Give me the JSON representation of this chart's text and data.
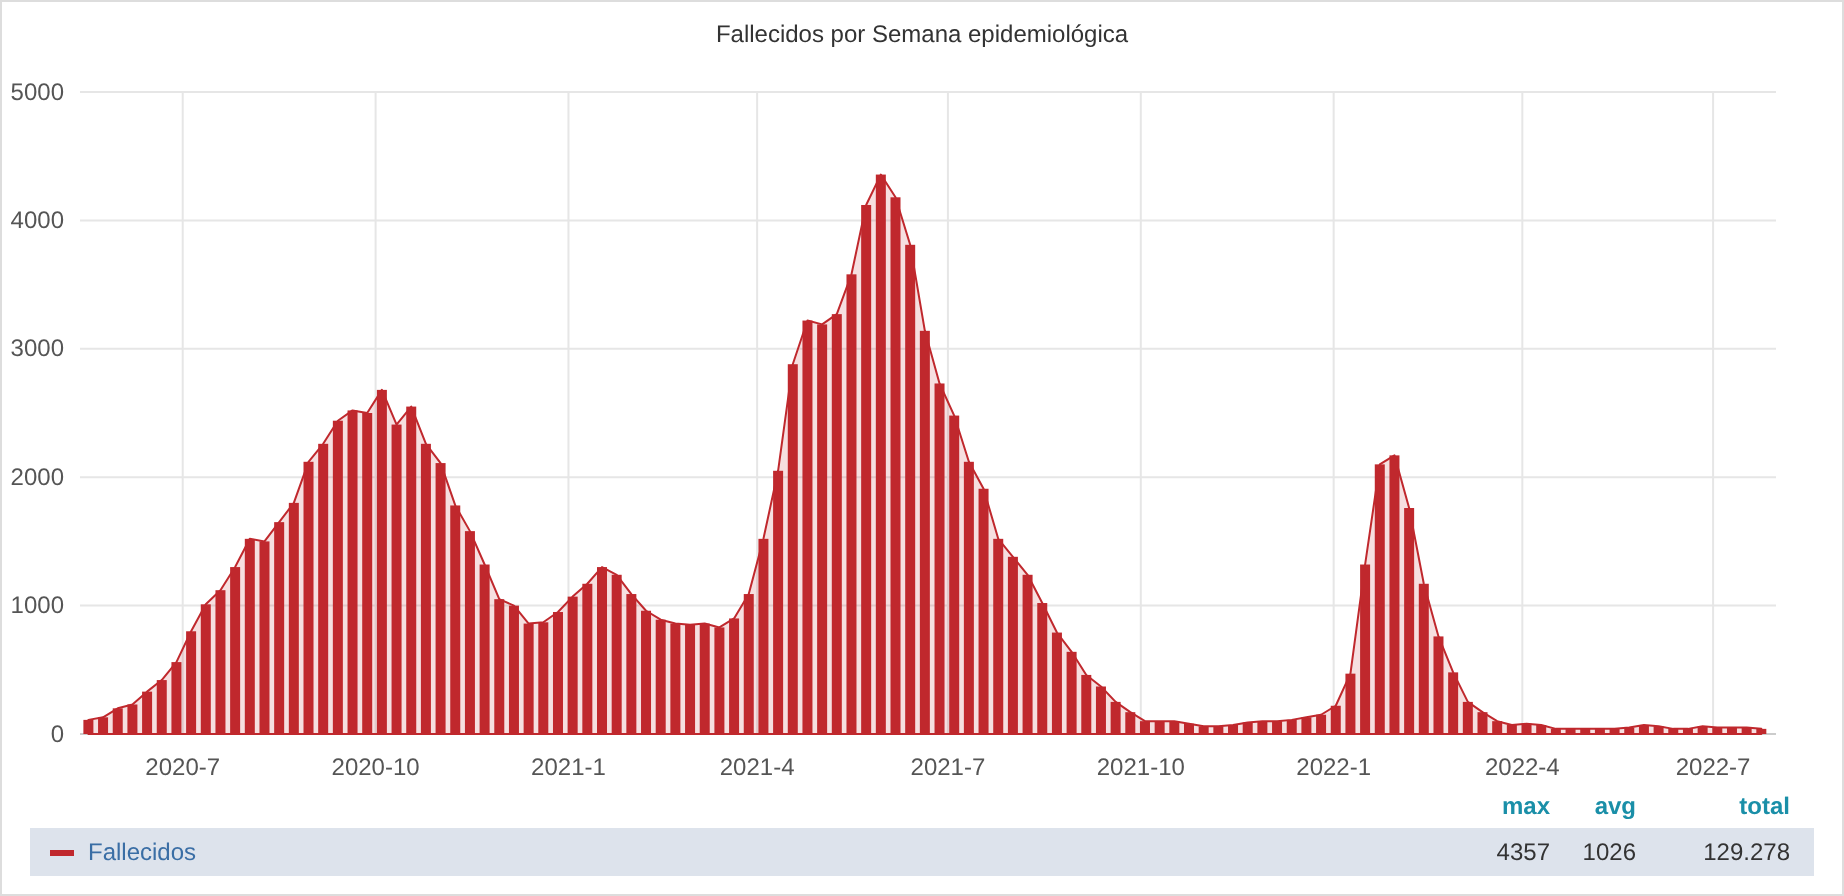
{
  "chart_data": {
    "type": "bar",
    "title": "Fallecidos por Semana epidemiológica",
    "x": [
      "2020-05-17",
      "2020-05-24",
      "2020-05-31",
      "2020-06-07",
      "2020-06-14",
      "2020-06-21",
      "2020-06-28",
      "2020-07-05",
      "2020-07-12",
      "2020-07-19",
      "2020-07-26",
      "2020-08-02",
      "2020-08-09",
      "2020-08-16",
      "2020-08-23",
      "2020-08-30",
      "2020-09-06",
      "2020-09-13",
      "2020-09-20",
      "2020-09-27",
      "2020-10-04",
      "2020-10-11",
      "2020-10-18",
      "2020-10-25",
      "2020-11-01",
      "2020-11-08",
      "2020-11-15",
      "2020-11-22",
      "2020-11-29",
      "2020-12-06",
      "2020-12-13",
      "2020-12-20",
      "2020-12-27",
      "2021-01-03",
      "2021-01-10",
      "2021-01-17",
      "2021-01-24",
      "2021-01-31",
      "2021-02-07",
      "2021-02-14",
      "2021-02-21",
      "2021-02-28",
      "2021-03-07",
      "2021-03-14",
      "2021-03-21",
      "2021-03-28",
      "2021-04-04",
      "2021-04-11",
      "2021-04-18",
      "2021-04-25",
      "2021-05-02",
      "2021-05-09",
      "2021-05-16",
      "2021-05-23",
      "2021-05-30",
      "2021-06-06",
      "2021-06-13",
      "2021-06-20",
      "2021-06-27",
      "2021-07-04",
      "2021-07-11",
      "2021-07-18",
      "2021-07-25",
      "2021-08-01",
      "2021-08-08",
      "2021-08-15",
      "2021-08-22",
      "2021-08-29",
      "2021-09-05",
      "2021-09-12",
      "2021-09-19",
      "2021-09-26",
      "2021-10-03",
      "2021-10-10",
      "2021-10-17",
      "2021-10-24",
      "2021-10-31",
      "2021-11-07",
      "2021-11-14",
      "2021-11-21",
      "2021-11-28",
      "2021-12-05",
      "2021-12-12",
      "2021-12-19",
      "2021-12-26",
      "2022-01-02",
      "2022-01-09",
      "2022-01-16",
      "2022-01-23",
      "2022-01-30",
      "2022-02-06",
      "2022-02-13",
      "2022-02-20",
      "2022-02-27",
      "2022-03-06",
      "2022-03-13",
      "2022-03-20",
      "2022-03-27",
      "2022-04-03",
      "2022-04-10",
      "2022-04-17",
      "2022-04-24",
      "2022-05-01",
      "2022-05-08",
      "2022-05-15",
      "2022-05-22",
      "2022-05-29",
      "2022-06-05",
      "2022-06-12",
      "2022-06-19",
      "2022-06-26",
      "2022-07-03",
      "2022-07-10",
      "2022-07-17",
      "2022-07-24"
    ],
    "series": [
      {
        "name": "Fallecidos",
        "color": "#c0282d",
        "values": [
          110,
          130,
          200,
          230,
          330,
          420,
          560,
          800,
          1010,
          1120,
          1300,
          1520,
          1500,
          1650,
          1800,
          2120,
          2260,
          2440,
          2520,
          2500,
          2680,
          2410,
          2550,
          2260,
          2110,
          1780,
          1580,
          1320,
          1050,
          1000,
          860,
          870,
          950,
          1070,
          1170,
          1300,
          1240,
          1090,
          960,
          890,
          860,
          850,
          860,
          830,
          900,
          1090,
          1520,
          2050,
          2880,
          3220,
          3190,
          3270,
          3580,
          4120,
          4357,
          4180,
          3810,
          3140,
          2730,
          2480,
          2120,
          1910,
          1520,
          1380,
          1240,
          1020,
          790,
          640,
          460,
          370,
          250,
          170,
          100,
          100,
          100,
          80,
          60,
          60,
          70,
          90,
          100,
          100,
          110,
          130,
          150,
          220,
          470,
          1320,
          2100,
          2170,
          1760,
          1170,
          760,
          480,
          250,
          170,
          100,
          70,
          80,
          70,
          40,
          40,
          40,
          40,
          40,
          50,
          70,
          60,
          40,
          40,
          60,
          50,
          50,
          50,
          40
        ]
      },
      {
        "type": "area",
        "color": "#c0282d",
        "values": [
          110,
          130,
          200,
          230,
          330,
          420,
          560,
          800,
          1010,
          1120,
          1300,
          1520,
          1500,
          1650,
          1800,
          2120,
          2260,
          2440,
          2520,
          2500,
          2680,
          2410,
          2550,
          2260,
          2110,
          1780,
          1580,
          1320,
          1050,
          1000,
          860,
          870,
          950,
          1070,
          1170,
          1300,
          1240,
          1090,
          960,
          890,
          860,
          850,
          860,
          830,
          900,
          1090,
          1520,
          2050,
          2880,
          3220,
          3190,
          3270,
          3580,
          4120,
          4357,
          4180,
          3810,
          3140,
          2730,
          2480,
          2120,
          1910,
          1520,
          1380,
          1240,
          1020,
          790,
          640,
          460,
          370,
          250,
          170,
          100,
          100,
          100,
          80,
          60,
          60,
          70,
          90,
          100,
          100,
          110,
          130,
          150,
          220,
          470,
          1320,
          2100,
          2170,
          1760,
          1170,
          760,
          480,
          250,
          170,
          100,
          70,
          80,
          70,
          40,
          40,
          40,
          40,
          40,
          50,
          70,
          60,
          40,
          40,
          60,
          50,
          50,
          50,
          40
        ]
      }
    ],
    "xlim": [
      "2020-05-13",
      "2022-07-31"
    ],
    "xticks": [
      {
        "value": "2020-07-01",
        "label": "2020-7"
      },
      {
        "value": "2020-10-01",
        "label": "2020-10"
      },
      {
        "value": "2021-01-01",
        "label": "2021-1"
      },
      {
        "value": "2021-04-01",
        "label": "2021-4"
      },
      {
        "value": "2021-07-01",
        "label": "2021-7"
      },
      {
        "value": "2021-10-01",
        "label": "2021-10"
      },
      {
        "value": "2022-01-01",
        "label": "2022-1"
      },
      {
        "value": "2022-04-01",
        "label": "2022-4"
      },
      {
        "value": "2022-07-01",
        "label": "2022-7"
      }
    ],
    "ylim": [
      0,
      5000
    ],
    "yticks": [
      0,
      1000,
      2000,
      3000,
      4000,
      5000
    ],
    "grid": true,
    "legend": "bottom",
    "annotations": [
      "max",
      "avg",
      "total",
      "4357",
      "1026",
      "129.278"
    ]
  }
}
